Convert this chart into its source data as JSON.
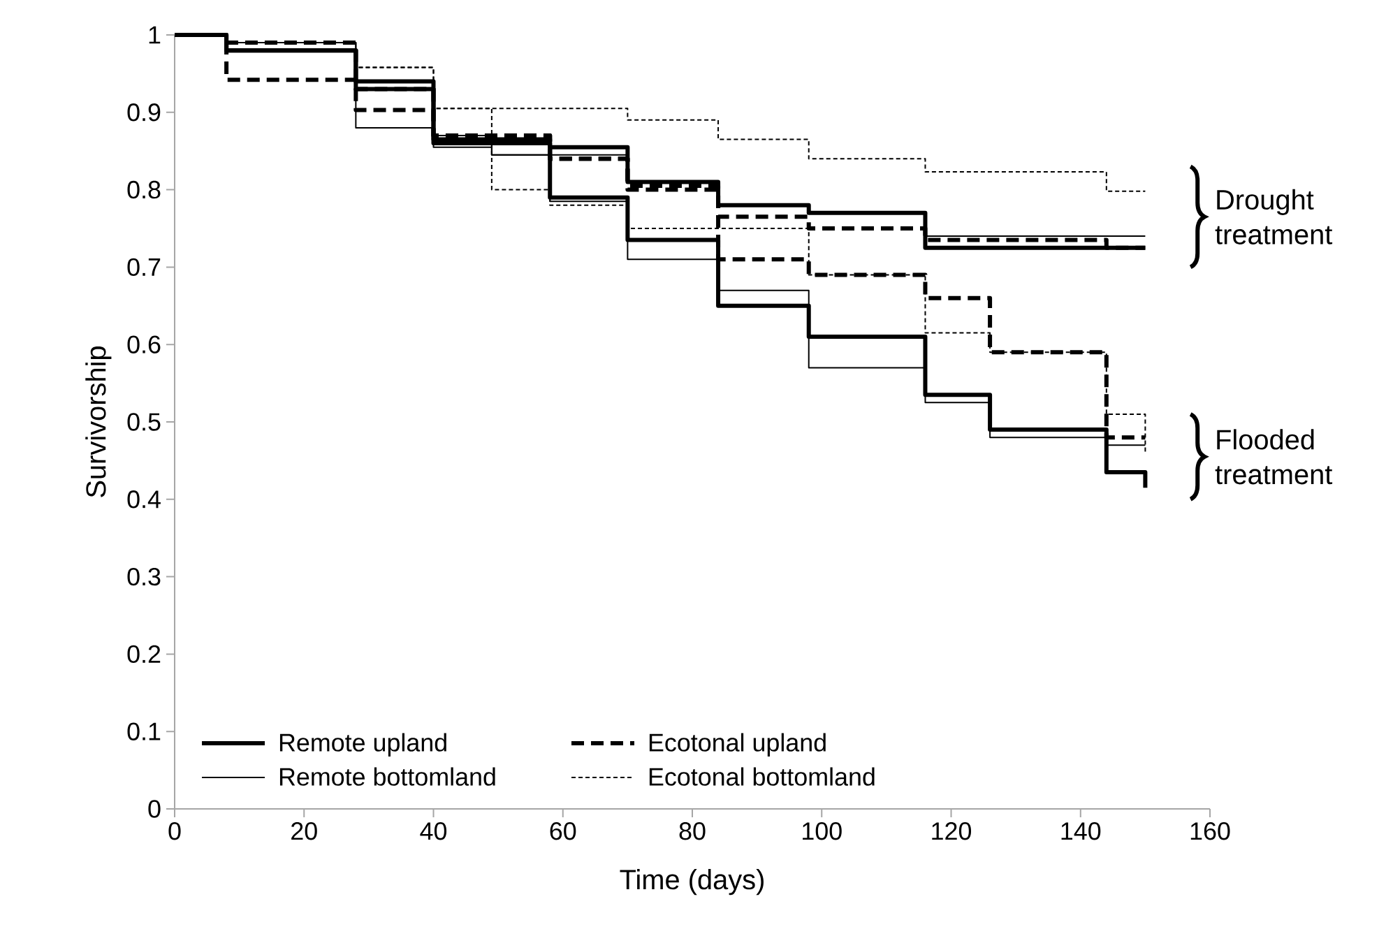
{
  "chart_data": {
    "type": "step",
    "xlabel": "Time (days)",
    "ylabel": "Survivorship",
    "xlim": [
      0,
      160
    ],
    "xticks": [
      0,
      20,
      40,
      60,
      80,
      100,
      120,
      140,
      160
    ],
    "ylim": [
      0,
      1
    ],
    "yticks": [
      {
        "value": 0,
        "label": "0"
      },
      {
        "value": 0.1,
        "label": "0.1"
      },
      {
        "value": 0.2,
        "label": "0.2"
      },
      {
        "value": 0.3,
        "label": "0.3"
      },
      {
        "value": 0.4,
        "label": "0.4"
      },
      {
        "value": 0.5,
        "label": "0.5"
      },
      {
        "value": 0.6,
        "label": "0.6"
      },
      {
        "value": 0.7,
        "label": "0.7"
      },
      {
        "value": 0.8,
        "label": "0.8"
      },
      {
        "value": 0.9,
        "label": "0.9"
      },
      {
        "value": 1,
        "label": "1"
      }
    ],
    "grid": false,
    "legend": "bottom left",
    "marker": "none",
    "annotations": [
      "Drought treatment",
      "Flooded treatment"
    ],
    "series": [
      {
        "name": "Remote upland",
        "color": "#000000",
        "line_style": "solid",
        "x": [
          0,
          8,
          28,
          40,
          58,
          70,
          84,
          98,
          116,
          150
        ],
        "values": [
          1,
          0.98,
          0.93,
          0.865,
          0.855,
          0.81,
          0.78,
          0.77,
          0.725,
          0.725
        ]
      },
      {
        "name": "Ecotonal upland",
        "color": "#000000",
        "line_style": "dashed",
        "x": [
          0,
          8,
          28,
          40,
          58,
          70,
          84,
          98,
          116,
          144,
          150
        ],
        "values": [
          1,
          0.99,
          0.93,
          0.87,
          0.84,
          0.805,
          0.765,
          0.75,
          0.735,
          0.725,
          0.725
        ]
      },
      {
        "name": "Remote bottomland",
        "color": "#000000",
        "line_style": "solid",
        "x": [
          0,
          8,
          28,
          40,
          49,
          58,
          70,
          84,
          98,
          116,
          150
        ],
        "values": [
          1,
          0.99,
          0.93,
          0.87,
          0.845,
          0.845,
          0.81,
          0.78,
          0.77,
          0.74,
          0.74
        ]
      },
      {
        "name": "Ecotonal bottomland",
        "color": "#000000",
        "line_style": "dotted",
        "x": [
          0,
          8,
          28,
          40,
          70,
          84,
          98,
          116,
          144,
          150
        ],
        "values": [
          1,
          0.98,
          0.958,
          0.905,
          0.89,
          0.865,
          0.84,
          0.823,
          0.798,
          0.798
        ]
      },
      {
        "color": "#000000",
        "line_style": "solid",
        "x": [
          0,
          8,
          28,
          40,
          58,
          70,
          84,
          98,
          116,
          126,
          144,
          150
        ],
        "values": [
          1,
          0.98,
          0.94,
          0.86,
          0.79,
          0.735,
          0.65,
          0.61,
          0.535,
          0.49,
          0.435,
          0.415
        ]
      },
      {
        "color": "#000000",
        "line_style": "dashed",
        "x": [
          0,
          8,
          28,
          40,
          58,
          70,
          84,
          98,
          116,
          126,
          144,
          150
        ],
        "values": [
          1,
          0.942,
          0.903,
          0.87,
          0.84,
          0.8,
          0.71,
          0.69,
          0.66,
          0.59,
          0.48,
          0.48
        ]
      },
      {
        "color": "#000000",
        "line_style": "solid",
        "x": [
          0,
          8,
          28,
          40,
          49,
          58,
          70,
          84,
          98,
          116,
          126,
          144,
          150
        ],
        "values": [
          1,
          0.99,
          0.88,
          0.855,
          0.845,
          0.785,
          0.71,
          0.67,
          0.57,
          0.525,
          0.48,
          0.47,
          0.47
        ]
      },
      {
        "color": "#000000",
        "line_style": "dotted",
        "x": [
          0,
          8,
          28,
          40,
          49,
          58,
          70,
          98,
          116,
          126,
          144,
          150
        ],
        "values": [
          1,
          0.98,
          0.958,
          0.905,
          0.8,
          0.78,
          0.75,
          0.69,
          0.615,
          0.59,
          0.51,
          0.46
        ]
      }
    ]
  }
}
